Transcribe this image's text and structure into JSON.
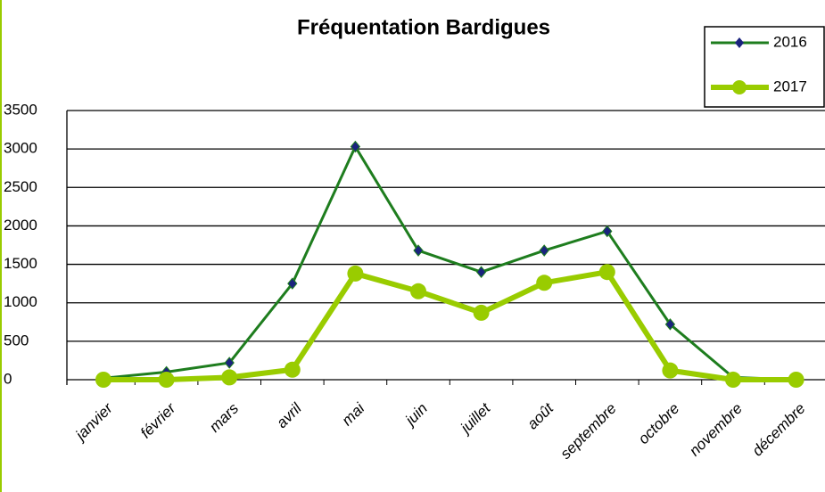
{
  "chart_data": {
    "type": "line",
    "title": "Fréquentation Bardigues",
    "categories": [
      "janvier",
      "février",
      "mars",
      "avril",
      "mai",
      "juin",
      "juillet",
      "août",
      "septembre",
      "octobre",
      "novembre",
      "décembre"
    ],
    "series": [
      {
        "name": "2016",
        "color": "#1e7d1e",
        "marker_color": "#1a237e",
        "values": [
          20,
          100,
          220,
          1250,
          3030,
          1680,
          1400,
          1680,
          1930,
          720,
          30,
          0
        ]
      },
      {
        "name": "2017",
        "color": "#99cc00",
        "marker_color": "#99cc00",
        "values": [
          0,
          0,
          30,
          130,
          1380,
          1150,
          870,
          1260,
          1400,
          120,
          0,
          0
        ]
      }
    ],
    "ylim": [
      0,
      3500
    ],
    "yticks": [
      0,
      500,
      1000,
      1500,
      2000,
      2500,
      3000,
      3500
    ],
    "grid": true,
    "legend": "top-right"
  }
}
